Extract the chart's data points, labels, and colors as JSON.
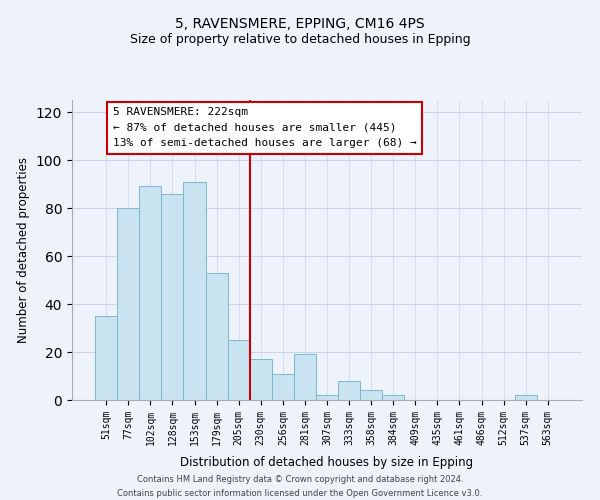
{
  "title": "5, RAVENSMERE, EPPING, CM16 4PS",
  "subtitle": "Size of property relative to detached houses in Epping",
  "xlabel": "Distribution of detached houses by size in Epping",
  "ylabel": "Number of detached properties",
  "bar_labels": [
    "51sqm",
    "77sqm",
    "102sqm",
    "128sqm",
    "153sqm",
    "179sqm",
    "205sqm",
    "230sqm",
    "256sqm",
    "281sqm",
    "307sqm",
    "333sqm",
    "358sqm",
    "384sqm",
    "409sqm",
    "435sqm",
    "461sqm",
    "486sqm",
    "512sqm",
    "537sqm",
    "563sqm"
  ],
  "bar_values": [
    35,
    80,
    89,
    86,
    91,
    53,
    25,
    17,
    11,
    19,
    2,
    8,
    4,
    2,
    0,
    0,
    0,
    0,
    0,
    2,
    0
  ],
  "bar_color": "#c9e4f0",
  "bar_edge_color": "#7ab8d4",
  "vline_x_idx": 7,
  "vline_color": "#cc0000",
  "annotation_line1": "5 RAVENSMERE: 222sqm",
  "annotation_line2": "← 87% of detached houses are smaller (445)",
  "annotation_line3": "13% of semi-detached houses are larger (68) →",
  "annotation_box_color": "#ffffff",
  "annotation_box_edge": "#cc0000",
  "ylim": [
    0,
    125
  ],
  "yticks": [
    0,
    20,
    40,
    60,
    80,
    100,
    120
  ],
  "footer": "Contains HM Land Registry data © Crown copyright and database right 2024.\nContains public sector information licensed under the Open Government Licence v3.0.",
  "bg_color": "#eef2fb",
  "grid_color": "#c8d4ee",
  "title_fontsize": 10,
  "subtitle_fontsize": 9
}
